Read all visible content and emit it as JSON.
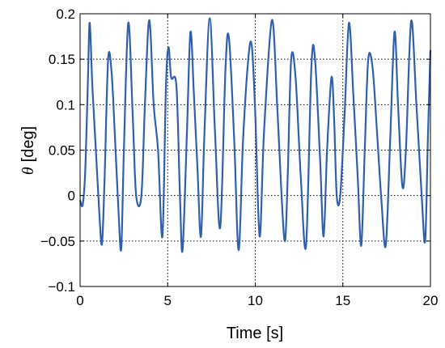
{
  "chart_data": {
    "type": "line",
    "xlabel": "Time [s]",
    "ylabel": {
      "symbol": "θ",
      "text": "[deg]"
    },
    "xlim": [
      0,
      20
    ],
    "ylim": [
      -0.1,
      0.2
    ],
    "xticks": [
      0,
      5,
      10,
      15,
      20
    ],
    "yticks": [
      -0.1,
      -0.05,
      0,
      0.05,
      0.1,
      0.15,
      0.2
    ],
    "xtick_labels": [
      "0",
      "5",
      "10",
      "15",
      "20"
    ],
    "ytick_labels": [
      "−0.1",
      "−0.05",
      "0",
      "0.05",
      "0.1",
      "0.15",
      "0.2"
    ],
    "grid": {
      "x": true,
      "y": true,
      "style": "dotted"
    },
    "series": [
      {
        "color": "#2f5fad",
        "points": [
          [
            0.0,
            -0.005
          ],
          [
            0.15,
            -0.01
          ],
          [
            0.3,
            0.03
          ],
          [
            0.45,
            0.13
          ],
          [
            0.55,
            0.19
          ],
          [
            0.7,
            0.12
          ],
          [
            0.9,
            0.05
          ],
          [
            1.1,
            -0.02
          ],
          [
            1.25,
            -0.053
          ],
          [
            1.4,
            0.02
          ],
          [
            1.6,
            0.15
          ],
          [
            1.8,
            0.135
          ],
          [
            2.0,
            0.06
          ],
          [
            2.2,
            -0.02
          ],
          [
            2.35,
            -0.058
          ],
          [
            2.5,
            0.05
          ],
          [
            2.75,
            0.19
          ],
          [
            3.0,
            0.09
          ],
          [
            3.2,
            0.0
          ],
          [
            3.5,
            0.0
          ],
          [
            3.7,
            0.1
          ],
          [
            3.95,
            0.193
          ],
          [
            4.2,
            0.1
          ],
          [
            4.45,
            0.05
          ],
          [
            4.7,
            -0.045
          ],
          [
            4.9,
            0.12
          ],
          [
            5.05,
            0.163
          ],
          [
            5.2,
            0.13
          ],
          [
            5.5,
            0.12
          ],
          [
            5.7,
            0.0
          ],
          [
            5.85,
            -0.06
          ],
          [
            6.1,
            0.07
          ],
          [
            6.3,
            0.18
          ],
          [
            6.5,
            0.11
          ],
          [
            6.7,
            0.03
          ],
          [
            6.9,
            -0.045
          ],
          [
            7.1,
            0.07
          ],
          [
            7.4,
            0.195
          ],
          [
            7.7,
            0.07
          ],
          [
            8.0,
            -0.035
          ],
          [
            8.3,
            0.14
          ],
          [
            8.5,
            0.173
          ],
          [
            8.8,
            0.06
          ],
          [
            9.05,
            -0.06
          ],
          [
            9.3,
            0.06
          ],
          [
            9.6,
            0.15
          ],
          [
            9.8,
            0.165
          ],
          [
            10.0,
            0.09
          ],
          [
            10.25,
            -0.045
          ],
          [
            10.5,
            0.07
          ],
          [
            10.95,
            0.193
          ],
          [
            11.25,
            0.1
          ],
          [
            11.5,
            0.0
          ],
          [
            11.7,
            -0.05
          ],
          [
            11.85,
            0.02
          ],
          [
            12.05,
            0.15
          ],
          [
            12.3,
            0.13
          ],
          [
            12.6,
            0.02
          ],
          [
            12.9,
            -0.055
          ],
          [
            13.2,
            0.14
          ],
          [
            13.4,
            0.153
          ],
          [
            13.7,
            0.04
          ],
          [
            13.9,
            -0.045
          ],
          [
            14.1,
            0.05
          ],
          [
            14.35,
            0.13
          ],
          [
            14.5,
            0.085
          ],
          [
            14.65,
            0.0
          ],
          [
            14.85,
            0.0
          ],
          [
            15.1,
            0.09
          ],
          [
            15.35,
            0.19
          ],
          [
            15.6,
            0.11
          ],
          [
            15.85,
            0.02
          ],
          [
            16.05,
            -0.055
          ],
          [
            16.25,
            0.05
          ],
          [
            16.45,
            0.15
          ],
          [
            16.7,
            0.14
          ],
          [
            16.95,
            0.07
          ],
          [
            17.2,
            -0.005
          ],
          [
            17.45,
            -0.055
          ],
          [
            17.7,
            0.06
          ],
          [
            17.95,
            0.18
          ],
          [
            18.15,
            0.1
          ],
          [
            18.4,
            0.01
          ],
          [
            18.6,
            0.05
          ],
          [
            18.9,
            0.192
          ],
          [
            19.2,
            0.1
          ],
          [
            19.5,
            0.0
          ],
          [
            19.7,
            -0.05
          ],
          [
            19.85,
            0.06
          ],
          [
            20.0,
            0.16
          ]
        ]
      }
    ]
  }
}
